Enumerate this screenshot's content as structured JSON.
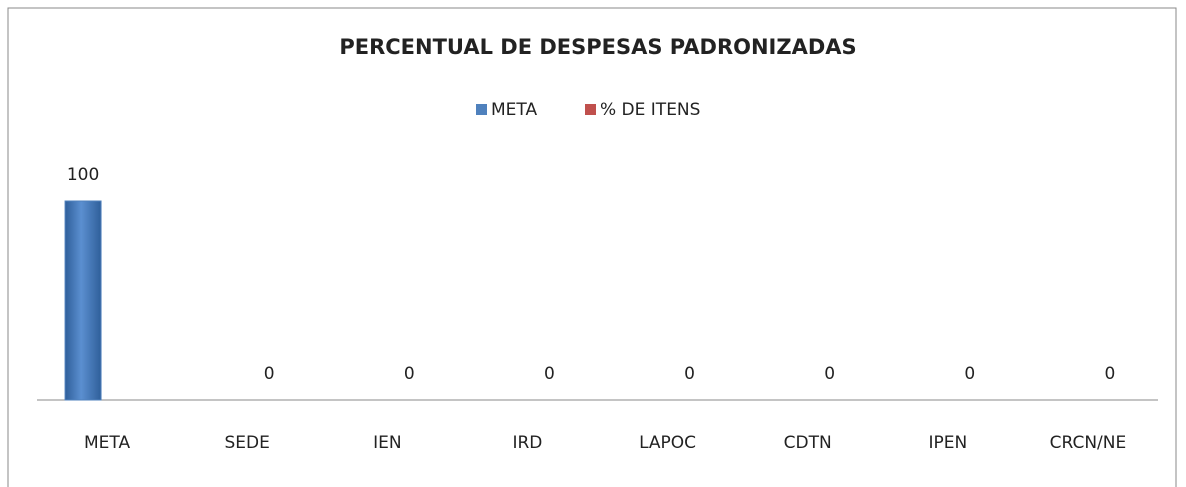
{
  "chart_data": {
    "type": "bar",
    "title": "PERCENTUAL DE DESPESAS PADRONIZADAS",
    "categories": [
      "META",
      "SEDE",
      "IEN",
      "IRD",
      "LAPOC",
      "CDTN",
      "IPEN",
      "CRCN/NE"
    ],
    "series": [
      {
        "name": "META",
        "color": "#4f81bd",
        "values": [
          100,
          null,
          null,
          null,
          null,
          null,
          null,
          null
        ]
      },
      {
        "name": "% DE ITENS",
        "color": "#c0504d",
        "values": [
          null,
          0,
          0,
          0,
          0,
          0,
          0,
          0
        ]
      }
    ],
    "ylim": [
      0,
      100
    ],
    "legend": "top"
  }
}
